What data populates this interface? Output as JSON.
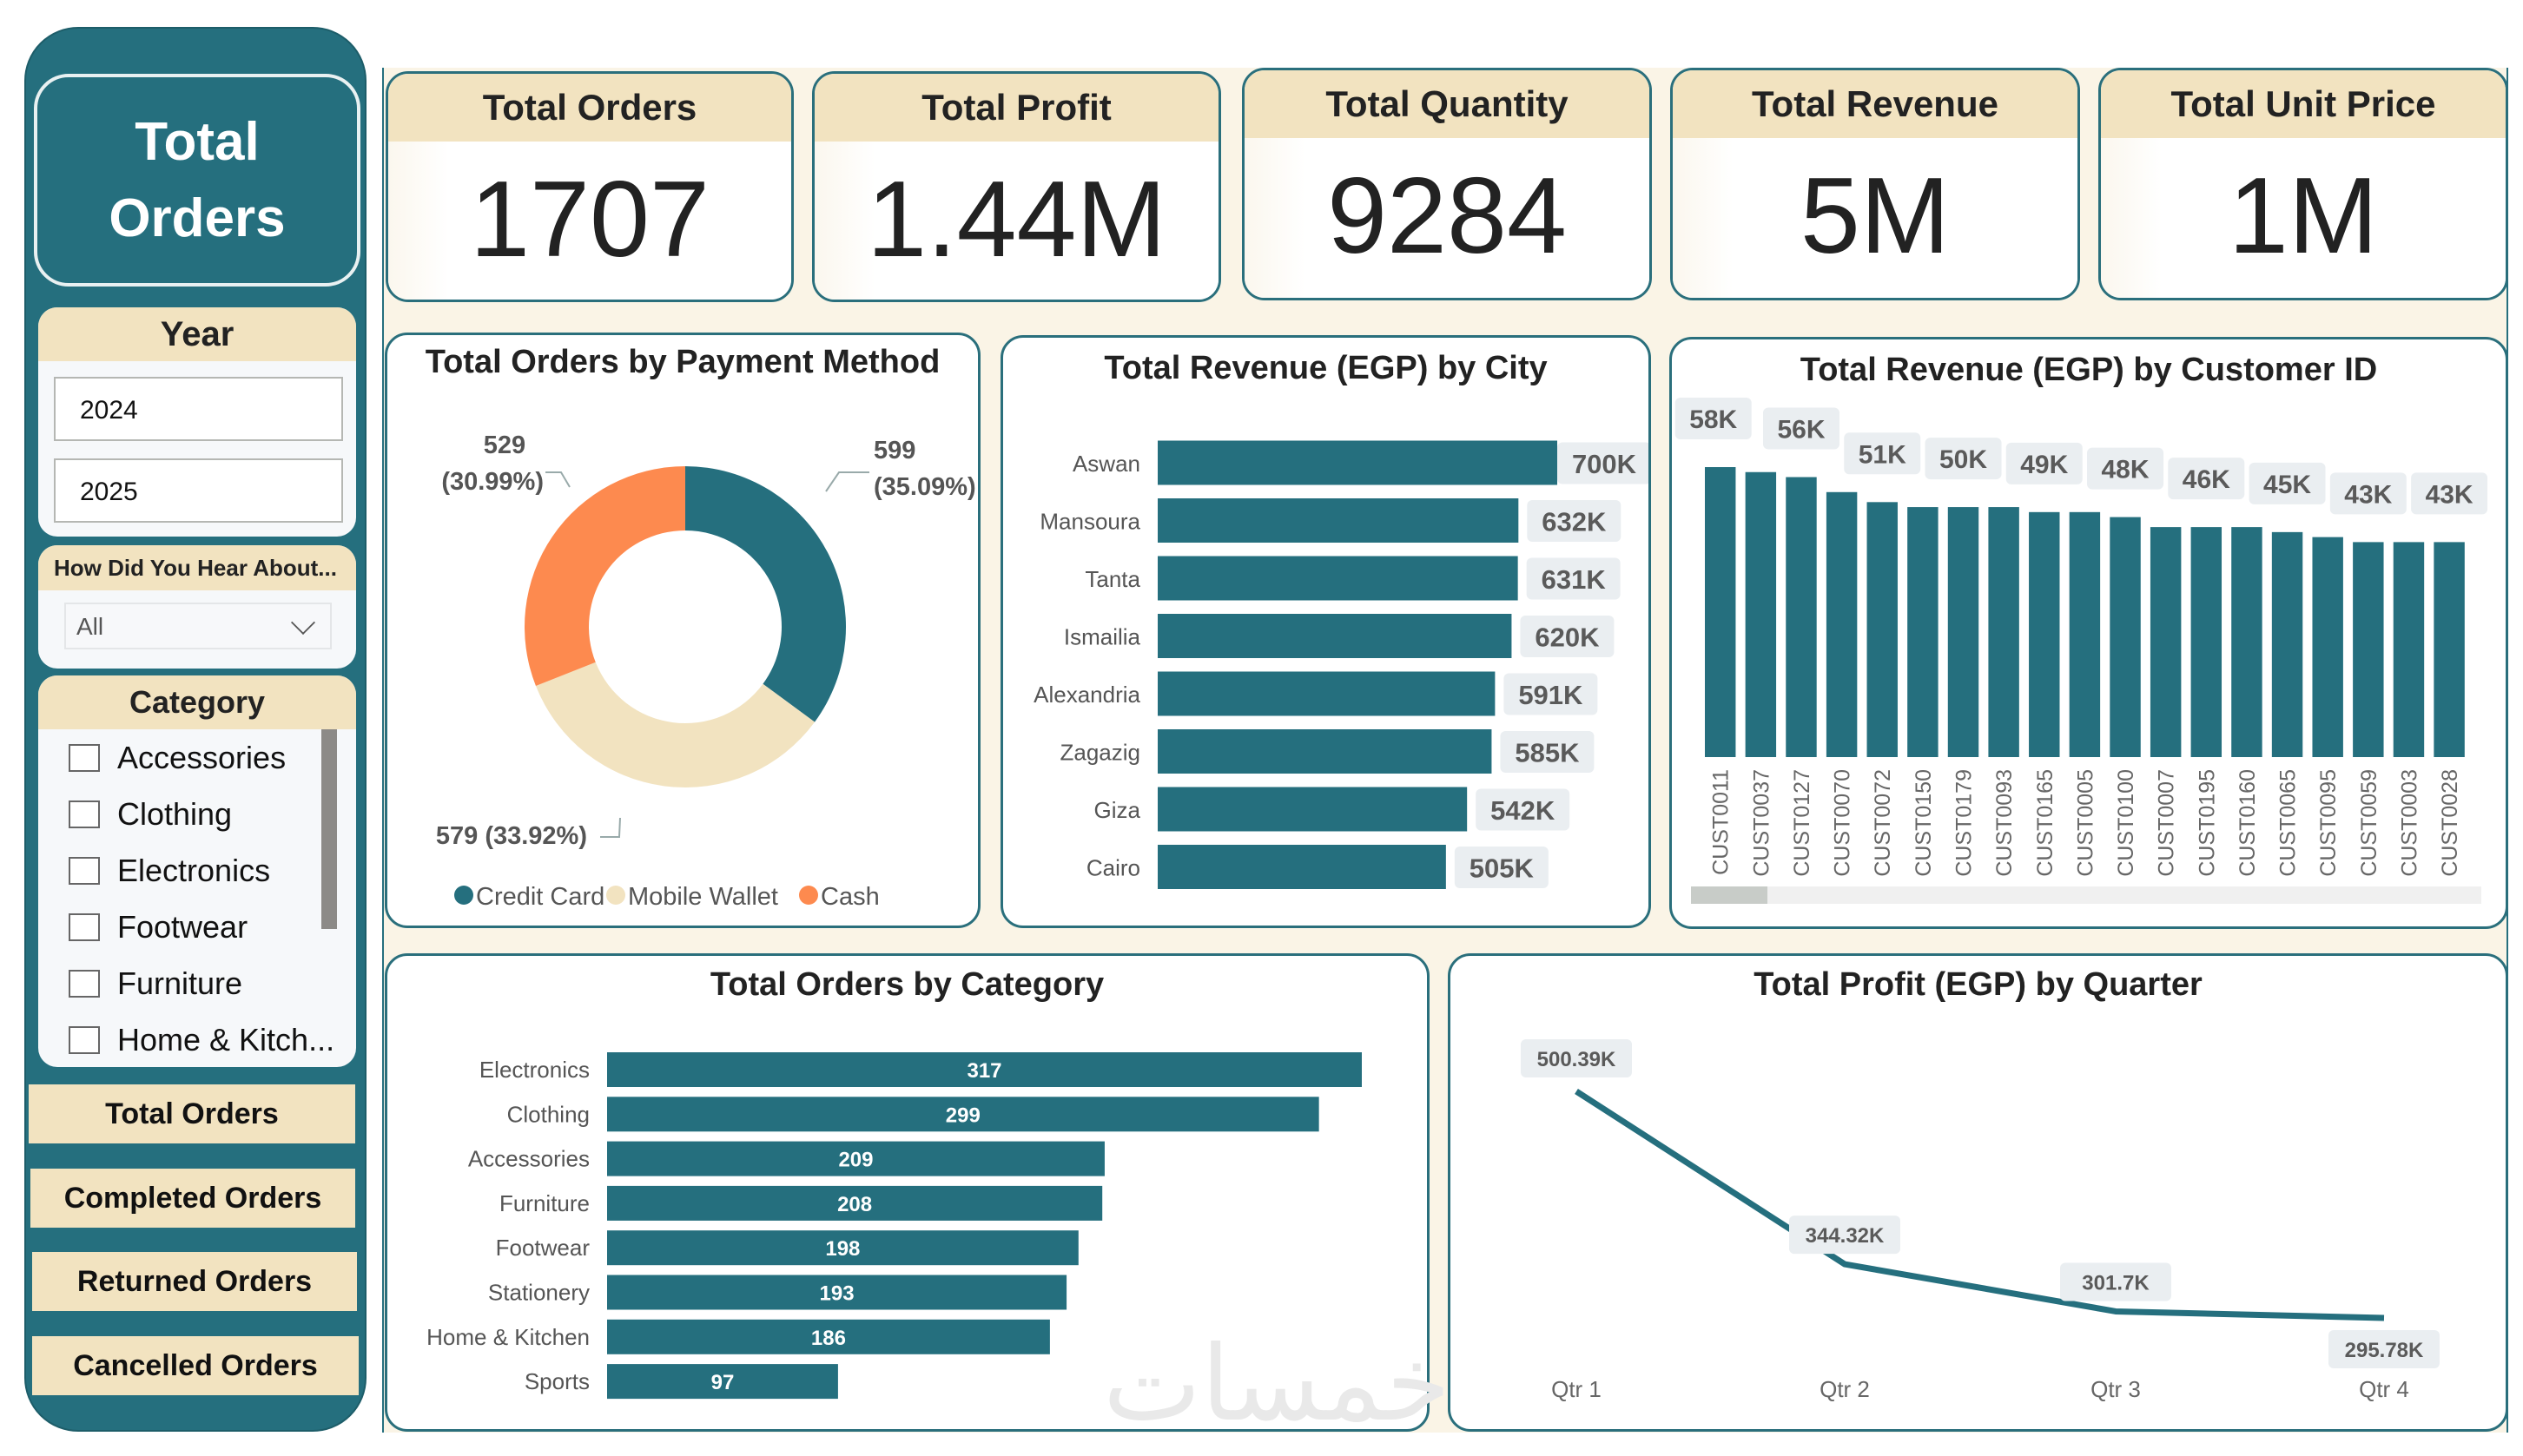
{
  "sidebar": {
    "title": "Total\nOrders",
    "year_slicer": {
      "header": "Year",
      "items": [
        "2024",
        "2025"
      ]
    },
    "hear_slicer": {
      "header": "How Did You Hear About...",
      "selected": "All"
    },
    "category_slicer": {
      "header": "Category",
      "items": [
        "Accessories",
        "Clothing",
        "Electronics",
        "Footwear",
        "Furniture",
        "Home & Kitch..."
      ]
    },
    "buttons": [
      "Total Orders",
      "Completed Orders",
      "Returned Orders",
      "Cancelled Orders"
    ]
  },
  "kpis": [
    {
      "label": "Total Orders",
      "value": "1707"
    },
    {
      "label": "Total Profit",
      "value": "1.44M"
    },
    {
      "label": "Total Quantity",
      "value": "9284"
    },
    {
      "label": "Total Revenue",
      "value": "5M"
    },
    {
      "label": "Total Unit Price",
      "value": "1M"
    }
  ],
  "colors": {
    "teal": "#256f7e",
    "cream": "#f2e3c0",
    "orange": "#fd8a4f",
    "background": "#faf4e6"
  },
  "watermark": "خمسات",
  "chart_data": [
    {
      "id": "payment",
      "type": "pie",
      "title": "Total Orders by Payment Method",
      "slices": [
        {
          "name": "Credit Card",
          "value": 599,
          "label": "599",
          "pct": "(35.09%)",
          "color": "#256f7e"
        },
        {
          "name": "Mobile Wallet",
          "value": 579,
          "label": "579",
          "pct": "(33.92%)",
          "color": "#f2e3c0"
        },
        {
          "name": "Cash",
          "value": 529,
          "label": "529",
          "pct": "(30.99%)",
          "color": "#fd8a4f"
        }
      ],
      "legend": [
        "Credit Card",
        "Mobile Wallet",
        "Cash"
      ],
      "legend_position": "bottom"
    },
    {
      "id": "city",
      "type": "bar",
      "orientation": "horizontal",
      "title": "Total Revenue (EGP) by City",
      "categories": [
        "Aswan",
        "Mansoura",
        "Tanta",
        "Ismailia",
        "Alexandria",
        "Zagazig",
        "Giza",
        "Cairo"
      ],
      "values": [
        700,
        632,
        631,
        620,
        591,
        585,
        542,
        505
      ],
      "labels": [
        "700K",
        "632K",
        "631K",
        "620K",
        "591K",
        "585K",
        "542K",
        "505K"
      ],
      "unit": "K EGP"
    },
    {
      "id": "customer",
      "type": "bar",
      "title": "Total Revenue (EGP) by Customer ID",
      "categories": [
        "CUST0011",
        "CUST0037",
        "CUST0127",
        "CUST0070",
        "CUST0072",
        "CUST0150",
        "CUST0179",
        "CUST0093",
        "CUST0165",
        "CUST0005",
        "CUST0100",
        "CUST0007",
        "CUST0195",
        "CUST0160",
        "CUST0065",
        "CUST0095",
        "CUST0059",
        "CUST0003",
        "CUST0028"
      ],
      "values": [
        58,
        57,
        56,
        53,
        51,
        50,
        50,
        50,
        49,
        49,
        48,
        46,
        46,
        46,
        45,
        44,
        43,
        43,
        43
      ],
      "labels": [
        "58K",
        "",
        "56K",
        "",
        "51K",
        "",
        "50K",
        "",
        "49K",
        "",
        "48K",
        "",
        "46K",
        "",
        "45K",
        "",
        "43K",
        "",
        "43K"
      ],
      "unit": "K EGP"
    },
    {
      "id": "category",
      "type": "bar",
      "orientation": "horizontal",
      "title": "Total Orders by Category",
      "categories": [
        "Electronics",
        "Clothing",
        "Accessories",
        "Furniture",
        "Footwear",
        "Stationery",
        "Home & Kitchen",
        "Sports"
      ],
      "values": [
        317,
        299,
        209,
        208,
        198,
        193,
        186,
        97
      ]
    },
    {
      "id": "quarter",
      "type": "line",
      "title": "Total Profit (EGP) by Quarter",
      "categories": [
        "Qtr 1",
        "Qtr 2",
        "Qtr 3",
        "Qtr 4"
      ],
      "values": [
        500.39,
        344.32,
        301.7,
        295.78
      ],
      "labels": [
        "500.39K",
        "344.32K",
        "301.7K",
        "295.78K"
      ],
      "unit": "K EGP"
    }
  ]
}
